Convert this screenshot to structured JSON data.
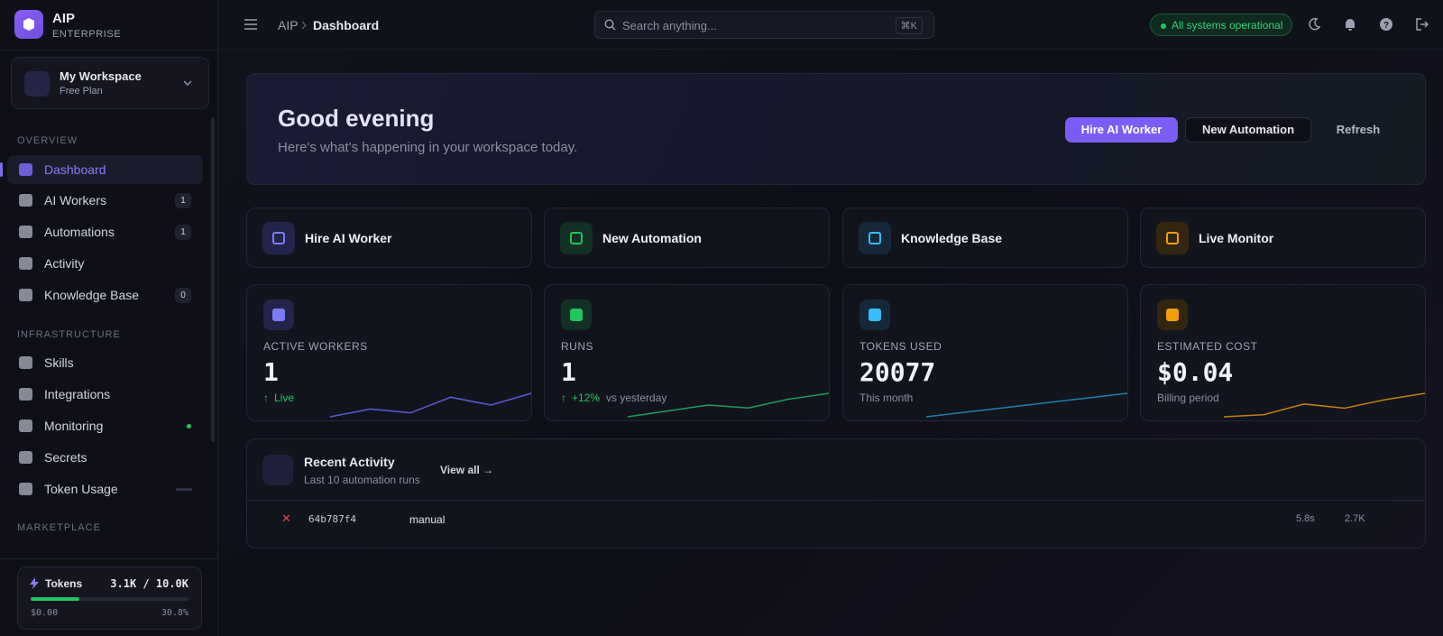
{
  "sidebar": {
    "brand": {
      "name": "AIP",
      "tier": "ENTERPRISE"
    },
    "workspace": {
      "name": "My Workspace",
      "plan": "Free Plan"
    },
    "sections": [
      {
        "title": "OVERVIEW",
        "items": [
          {
            "label": "Dashboard",
            "badge": null
          },
          {
            "label": "AI Workers",
            "badge": 1
          },
          {
            "label": "Automations",
            "badge": 1
          },
          {
            "label": "Activity",
            "badge": null
          },
          {
            "label": "Knowledge Base",
            "badge": 0
          }
        ]
      },
      {
        "title": "INFRASTRUCTURE",
        "items": [
          {
            "label": "Skills",
            "badge": null
          },
          {
            "label": "Integrations",
            "badge": null
          },
          {
            "label": "Monitoring",
            "badge": null
          },
          {
            "label": "Secrets",
            "badge": null
          },
          {
            "label": "Token Usage",
            "badge": null
          }
        ]
      },
      {
        "title": "MARKETPLACE",
        "items": []
      }
    ],
    "tokens": {
      "label": "Tokens",
      "usage": "3.1K / 10.0K",
      "cost": "$0.00",
      "percent": {
        "value": 30.8,
        "label": "30.8%"
      }
    }
  },
  "topbar": {
    "breadcrumb": [
      "AIP",
      "Dashboard"
    ],
    "search_placeholder": "Search anything...",
    "shortcut": "⌘K",
    "status": "All systems operational"
  },
  "hero": {
    "title": "Good evening",
    "subtitle": "Here's what's happening in your workspace today.",
    "buttons": [
      "Hire AI Worker",
      "New Automation",
      "Refresh"
    ]
  },
  "quick_actions": [
    "Hire AI Worker",
    "New Automation",
    "Knowledge Base",
    "Live Monitor"
  ],
  "stats": [
    {
      "label": "ACTIVE WORKERS",
      "value": 1,
      "note": "Live",
      "sparkline": [
        1,
        3,
        2,
        6,
        4,
        7
      ]
    },
    {
      "label": "RUNS",
      "value": 1,
      "change": "+12%",
      "note": "vs yesterday",
      "sparkline": [
        1,
        3,
        5,
        4,
        7,
        9
      ]
    },
    {
      "label": "TOKENS USED",
      "value": 20077,
      "note": "This month",
      "sparkline": [
        1,
        2,
        3,
        4,
        5,
        6,
        7
      ]
    },
    {
      "label": "ESTIMATED COST",
      "value": "$0.04",
      "note": "Billing period",
      "sparkline": [
        1,
        1.5,
        4,
        3,
        5,
        6.5
      ]
    }
  ],
  "recent_activity": {
    "title": "Recent Activity",
    "subtitle": "Last 10 automation runs",
    "link": "View all",
    "rows": [
      {
        "id": "64b787f4",
        "trigger": "manual",
        "duration": "5.8s",
        "tokens": "2.7K"
      }
    ]
  }
}
